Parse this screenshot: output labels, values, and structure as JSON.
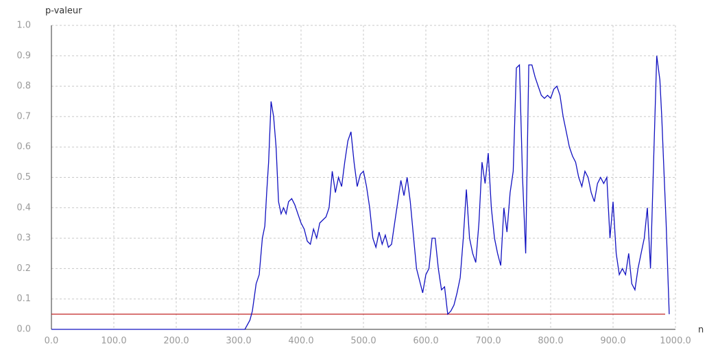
{
  "chart_data": {
    "type": "line",
    "y_label": "p-valeur",
    "x_label": "n",
    "x": [
      0,
      310,
      318,
      322,
      328,
      333,
      338,
      342,
      345,
      348,
      352,
      356,
      360,
      364,
      368,
      372,
      376,
      380,
      385,
      390,
      395,
      400,
      405,
      410,
      415,
      420,
      425,
      430,
      435,
      440,
      445,
      450,
      455,
      460,
      465,
      470,
      475,
      480,
      485,
      490,
      495,
      500,
      505,
      510,
      515,
      520,
      525,
      530,
      535,
      540,
      545,
      550,
      555,
      560,
      565,
      570,
      575,
      580,
      585,
      590,
      595,
      600,
      605,
      610,
      615,
      620,
      625,
      630,
      635,
      640,
      645,
      650,
      655,
      660,
      665,
      670,
      675,
      680,
      685,
      690,
      695,
      700,
      705,
      710,
      715,
      720,
      725,
      730,
      735,
      740,
      745,
      750,
      755,
      760,
      765,
      770,
      775,
      780,
      785,
      790,
      795,
      800,
      805,
      810,
      815,
      820,
      825,
      830,
      835,
      840,
      845,
      850,
      855,
      860,
      865,
      870,
      875,
      880,
      885,
      890,
      895,
      900,
      905,
      910,
      915,
      920,
      925,
      930,
      935,
      940,
      945,
      950,
      955,
      960,
      965,
      970,
      975,
      978,
      982,
      985,
      990
    ],
    "values": [
      0,
      0,
      0.03,
      0.06,
      0.15,
      0.18,
      0.3,
      0.34,
      0.45,
      0.55,
      0.75,
      0.7,
      0.6,
      0.42,
      0.38,
      0.4,
      0.38,
      0.42,
      0.43,
      0.41,
      0.38,
      0.35,
      0.33,
      0.29,
      0.28,
      0.33,
      0.3,
      0.35,
      0.36,
      0.37,
      0.4,
      0.52,
      0.45,
      0.5,
      0.47,
      0.55,
      0.62,
      0.65,
      0.55,
      0.47,
      0.51,
      0.52,
      0.47,
      0.4,
      0.3,
      0.27,
      0.32,
      0.28,
      0.31,
      0.27,
      0.28,
      0.35,
      0.42,
      0.49,
      0.44,
      0.5,
      0.42,
      0.31,
      0.2,
      0.16,
      0.12,
      0.18,
      0.2,
      0.3,
      0.3,
      0.2,
      0.13,
      0.14,
      0.05,
      0.06,
      0.08,
      0.12,
      0.17,
      0.3,
      0.46,
      0.3,
      0.25,
      0.22,
      0.35,
      0.55,
      0.48,
      0.58,
      0.4,
      0.3,
      0.25,
      0.21,
      0.4,
      0.32,
      0.45,
      0.52,
      0.86,
      0.87,
      0.5,
      0.25,
      0.87,
      0.87,
      0.83,
      0.8,
      0.77,
      0.76,
      0.77,
      0.76,
      0.79,
      0.8,
      0.77,
      0.7,
      0.65,
      0.6,
      0.57,
      0.55,
      0.5,
      0.47,
      0.52,
      0.5,
      0.45,
      0.42,
      0.48,
      0.5,
      0.48,
      0.5,
      0.3,
      0.42,
      0.25,
      0.18,
      0.2,
      0.18,
      0.25,
      0.15,
      0.13,
      0.2,
      0.25,
      0.3,
      0.4,
      0.2,
      0.55,
      0.9,
      0.82,
      0.7,
      0.5,
      0.35,
      0.05
    ],
    "color": "#1010c0",
    "threshold": 0.05,
    "threshold_color": "#c02020",
    "xlim": [
      0,
      1000
    ],
    "ylim": [
      0,
      1
    ],
    "xticks": [
      {
        "value": 0,
        "label": "0.0"
      },
      {
        "value": 100,
        "label": "100.0"
      },
      {
        "value": 200,
        "label": "200.0"
      },
      {
        "value": 300,
        "label": "300.0"
      },
      {
        "value": 400,
        "label": "400.0"
      },
      {
        "value": 500,
        "label": "500.0"
      },
      {
        "value": 600,
        "label": "600.0"
      },
      {
        "value": 700,
        "label": "700.0"
      },
      {
        "value": 800,
        "label": "800.0"
      },
      {
        "value": 900,
        "label": "900.0"
      },
      {
        "value": 1000,
        "label": "1000.0"
      }
    ],
    "yticks": [
      {
        "value": 0,
        "label": "0.0"
      },
      0.1,
      0.2,
      0.3,
      0.4,
      0.5,
      0.6,
      0.7,
      0.8,
      0.9,
      {
        "value": 1,
        "label": "1.0"
      }
    ],
    "grid": true
  }
}
